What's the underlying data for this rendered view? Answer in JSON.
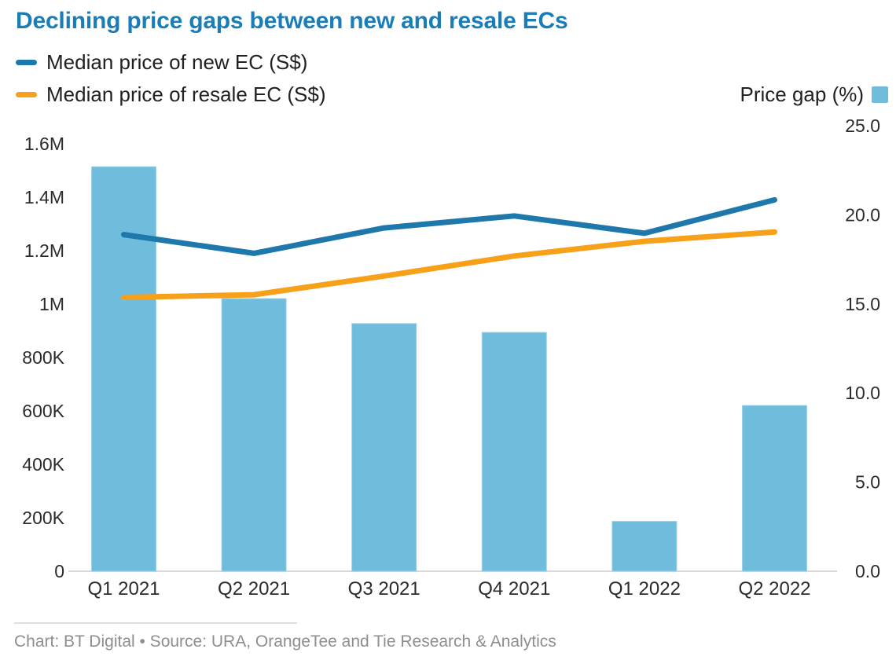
{
  "header": {
    "title": "Declining price gaps between new and resale ECs",
    "legend": [
      {
        "label": "Median price of new EC (S$)",
        "color": "#1f78ab"
      },
      {
        "label": "Median price of resale EC (S$)",
        "color": "#f7a11a"
      }
    ],
    "right_legend": {
      "label": "Price gap (%)",
      "color": "#6fbcdc"
    }
  },
  "footer": {
    "text": "Chart: BT Digital • Source: URA, OrangeTee and Tie Research & Analytics"
  },
  "colors": {
    "title": "#1a7db8",
    "line_new": "#1f78ab",
    "line_resale": "#f7a11a",
    "bar": "#6fbcdc",
    "bar_border": "#9ed2e8",
    "axis_text": "#2b2b2b",
    "baseline": "#d9d9d9",
    "divider": "#dedede",
    "footer_text": "#8e8e8e"
  },
  "chart_data": {
    "type": "combo",
    "title": "Declining price gaps between new and resale ECs",
    "categories": [
      "Q1 2021",
      "Q2 2021",
      "Q3 2021",
      "Q4 2021",
      "Q1 2022",
      "Q2 2022"
    ],
    "series": [
      {
        "key": "price_gap",
        "name": "Price gap (%)",
        "type": "bar",
        "axis": "right",
        "color": "#6fbcdc",
        "values": [
          22.7,
          15.3,
          13.9,
          13.4,
          2.8,
          9.3
        ]
      },
      {
        "key": "new_ec",
        "name": "Median price of new EC (S$)",
        "type": "line",
        "axis": "left",
        "color": "#1f78ab",
        "values": [
          1260000,
          1190000,
          1285000,
          1330000,
          1265000,
          1390000
        ]
      },
      {
        "key": "resale_ec",
        "name": "Median price of resale EC (S$)",
        "type": "line",
        "axis": "left",
        "color": "#f7a11a",
        "values": [
          1025000,
          1035000,
          1105000,
          1180000,
          1235000,
          1270000
        ]
      }
    ],
    "left_axis": {
      "min": 0,
      "max": 1600000,
      "ticks": [
        {
          "value": 0,
          "label": "0"
        },
        {
          "value": 200000,
          "label": "200K"
        },
        {
          "value": 400000,
          "label": "400K"
        },
        {
          "value": 600000,
          "label": "600K"
        },
        {
          "value": 800000,
          "label": "800K"
        },
        {
          "value": 1000000,
          "label": "1M"
        },
        {
          "value": 1200000,
          "label": "1.2M"
        },
        {
          "value": 1400000,
          "label": "1.4M"
        },
        {
          "value": 1600000,
          "label": "1.6M"
        }
      ]
    },
    "right_axis": {
      "min": 0,
      "max": 25,
      "ticks": [
        {
          "value": 0,
          "label": "0.0"
        },
        {
          "value": 5,
          "label": "5.0"
        },
        {
          "value": 10,
          "label": "10.0"
        },
        {
          "value": 15,
          "label": "15.0"
        },
        {
          "value": 20,
          "label": "20.0"
        },
        {
          "value": 25,
          "label": "25.0"
        }
      ]
    },
    "grid": false,
    "legend_position": "top"
  }
}
